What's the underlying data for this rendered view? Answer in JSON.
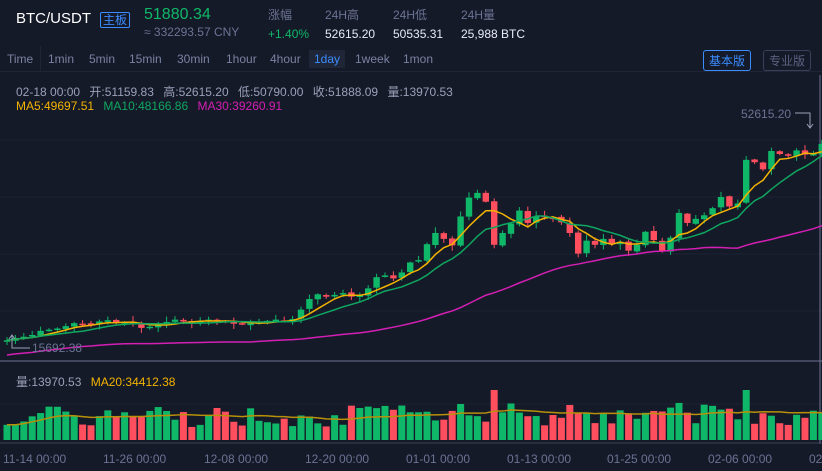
{
  "header": {
    "pair": "BTC/USDT",
    "badge": "主板",
    "price": "51880.34",
    "cny": "≈ 332293.57 CNY",
    "stats": [
      {
        "label": "涨幅",
        "value": "+1.40%"
      },
      {
        "label": "24H高",
        "value": "52615.20"
      },
      {
        "label": "24H低",
        "value": "50535.31"
      },
      {
        "label": "24H量",
        "value": "25,988 BTC"
      }
    ]
  },
  "toolbar": {
    "timeframes": [
      "Time",
      "1min",
      "5min",
      "15min",
      "30min",
      "1hour",
      "4hour",
      "1day",
      "1week",
      "1mon"
    ],
    "active": "1day",
    "basic_label": "基本版",
    "pro_label": "专业版"
  },
  "ohlc_info": {
    "date": "02-18 00:00",
    "open": "开:51159.83",
    "high": "高:52615.20",
    "low": "低:50790.00",
    "close": "收:51888.09",
    "volume": "量:13970.53"
  },
  "ma_info": {
    "ma5": "MA5:49697.51",
    "ma10": "MA10:48166.86",
    "ma30": "MA30:39260.91"
  },
  "volume_info": {
    "volume": "量:13970.53",
    "ma20": "MA20:34412.38"
  },
  "markers": {
    "high": "52615.20",
    "low": "15692.38"
  },
  "colors": {
    "up": "#0fb869",
    "down": "#ff4f5e",
    "ma5": "#f3b300",
    "ma10": "#0fa660",
    "ma30": "#d41fb4",
    "accent": "#3b8cff",
    "background": "#151a28"
  },
  "chart_data": {
    "type": "candlestick",
    "title": "BTC/USDT 1day",
    "x_tick_labels": [
      "11-14 00:00",
      "11-26 00:00",
      "12-08 00:00",
      "12-20 00:00",
      "01-01 00:00",
      "01-13 00:00",
      "01-25 00:00",
      "02-06 00:00",
      "02"
    ],
    "price_range": [
      15692.38,
      52615.2
    ],
    "close_series_approx": [
      15800,
      16200,
      16400,
      16700,
      17400,
      17600,
      17800,
      18200,
      18700,
      18600,
      18400,
      19000,
      19200,
      18800,
      18900,
      18500,
      17900,
      18100,
      18600,
      18900,
      19300,
      19000,
      18800,
      19100,
      19300,
      19200,
      18900,
      18600,
      18500,
      18700,
      18900,
      19100,
      19300,
      19000,
      19400,
      21000,
      22800,
      23600,
      23200,
      23500,
      23800,
      23200,
      23400,
      24600,
      26500,
      26800,
      26300,
      27300,
      29000,
      29400,
      32100,
      34000,
      33000,
      31900,
      36800,
      40000,
      40800,
      39300,
      32000,
      34000,
      35600,
      37800,
      35700,
      36800,
      36700,
      36600,
      35800,
      34000,
      30500,
      32700,
      32000,
      33000,
      32200,
      32400,
      31000,
      32000,
      34200,
      32800,
      30900,
      33200,
      37400,
      35700,
      36400,
      37000,
      38200,
      40100,
      38500,
      39000,
      46400,
      46000,
      44800,
      47900,
      47400,
      47100,
      48000,
      47300,
      47400,
      49100,
      51888
    ],
    "ma_lines": [
      "MA5",
      "MA10",
      "MA30"
    ],
    "volume_ma": "MA20"
  }
}
